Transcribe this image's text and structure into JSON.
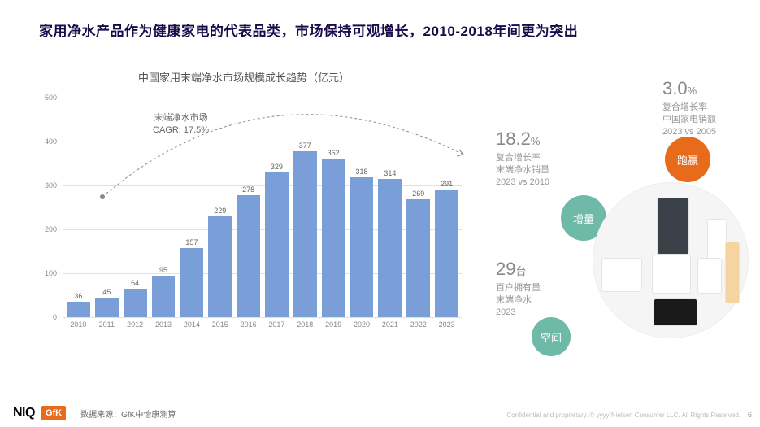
{
  "title": "家用净水产品作为健康家电的代表品类，市场保持可观增长，2010-2018年间更为突出",
  "chart": {
    "type": "bar",
    "title": "中国家用末端净水市场规模成长趋势（亿元）",
    "cagr_label_l1": "末端净水市场",
    "cagr_label_l2": "CAGR: 17.5%",
    "categories": [
      "2010",
      "2011",
      "2012",
      "2013",
      "2014",
      "2015",
      "2016",
      "2017",
      "2018",
      "2019",
      "2020",
      "2021",
      "2022",
      "2023"
    ],
    "values": [
      36,
      45,
      64,
      95,
      157,
      229,
      278,
      329,
      377,
      362,
      318,
      314,
      269,
      291
    ],
    "ylim": [
      0,
      500
    ],
    "ytick_step": 100,
    "bar_color": "#7a9ed8",
    "grid_color": "#e0e0e0",
    "value_label_color": "#666666",
    "axis_label_color": "#888888",
    "background_color": "#ffffff"
  },
  "stats": {
    "s1": {
      "value": "18.2",
      "unit": "%",
      "lines": [
        "复合增长率",
        "末端净水销量",
        "2023 vs 2010"
      ]
    },
    "s2": {
      "value": "3.0",
      "unit": "%",
      "lines": [
        "复合增长率",
        "中国家电销额",
        "2023 vs 2005"
      ]
    },
    "s3": {
      "value": "29",
      "unit": "台",
      "lines": [
        "百户拥有量",
        "末端净水",
        "2023"
      ]
    }
  },
  "circles": {
    "c1": {
      "label": "增量",
      "color": "#6fb9a8"
    },
    "c2": {
      "label": "跑赢",
      "color": "#e86b1c"
    },
    "c3": {
      "label": "空间",
      "color": "#6fb9a8"
    }
  },
  "footer": {
    "niq": "NIQ",
    "gfk": "GfK",
    "source": "数据来源：GfK中怡康测算",
    "confidential": "Confidential and proprietary.   © yyyy Nielsen Consumer LLC. All Rights Reserved.",
    "page": "6"
  }
}
